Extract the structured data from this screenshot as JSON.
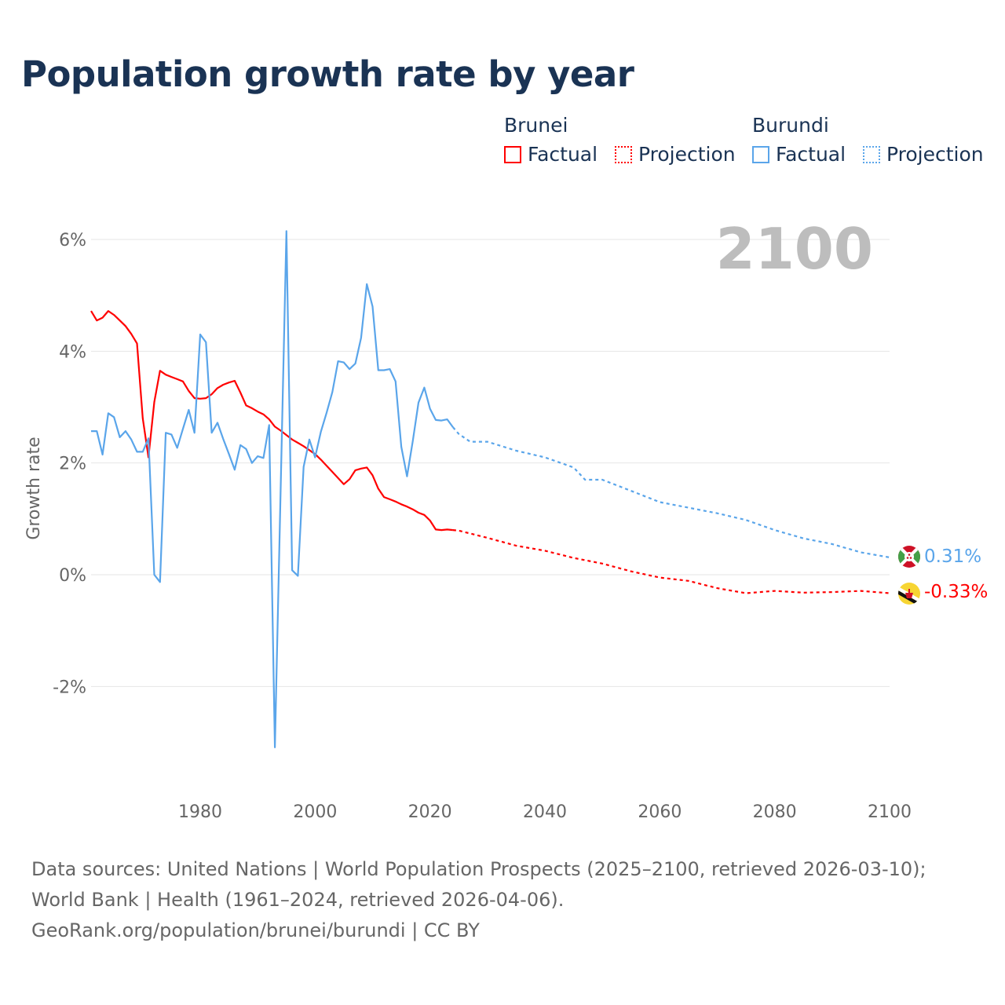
{
  "title": "Population growth rate by year",
  "legend": {
    "groups": [
      {
        "name": "Brunei",
        "color": "#ff0000",
        "factual": "Factual",
        "projection": "Projection"
      },
      {
        "name": "Burundi",
        "color": "#5aa5ea",
        "factual": "Factual",
        "projection": "Projection"
      }
    ]
  },
  "footer": {
    "sources": "Data sources: United Nations | World Population Prospects (2025–2100, retrieved 2026-03-10); World Bank | Health (1961–2024, retrieved 2026-04-06).",
    "credit": "GeoRank.org/population/brunei/burundi | CC BY"
  },
  "chart_data": {
    "type": "line",
    "title": "Population growth rate by year",
    "ylabel": "Growth rate",
    "xlabel": "",
    "year_label": "2100",
    "xlim": [
      1961,
      2100
    ],
    "ylim": [
      -3.5,
      6.5
    ],
    "xticks": [
      1980,
      2000,
      2020,
      2040,
      2060,
      2080,
      2100
    ],
    "yticks": [
      {
        "v": 6,
        "label": "6%"
      },
      {
        "v": 4,
        "label": "4%"
      },
      {
        "v": 2,
        "label": "2%"
      },
      {
        "v": 0,
        "label": "0%"
      },
      {
        "v": -2,
        "label": "-2%"
      }
    ],
    "grid": true,
    "series": [
      {
        "name": "Brunei",
        "color": "#ff0000",
        "end_label": "-0.33%",
        "factual": {
          "x": [
            1961,
            1962,
            1963,
            1964,
            1965,
            1966,
            1967,
            1968,
            1969,
            1970,
            1971,
            1972,
            1973,
            1974,
            1975,
            1976,
            1977,
            1978,
            1979,
            1980,
            1981,
            1982,
            1983,
            1984,
            1985,
            1986,
            1987,
            1988,
            1989,
            1990,
            1991,
            1992,
            1993,
            1994,
            1995,
            1996,
            1997,
            1998,
            1999,
            2000,
            2001,
            2002,
            2003,
            2004,
            2005,
            2006,
            2007,
            2008,
            2009,
            2010,
            2011,
            2012,
            2013,
            2014,
            2015,
            2016,
            2017,
            2018,
            2019,
            2020,
            2021,
            2022,
            2023,
            2024
          ],
          "y": [
            4.72,
            4.55,
            4.6,
            4.72,
            4.65,
            4.55,
            4.45,
            4.31,
            4.14,
            2.8,
            2.1,
            3.09,
            3.65,
            3.58,
            3.54,
            3.5,
            3.46,
            3.29,
            3.16,
            3.15,
            3.16,
            3.23,
            3.34,
            3.4,
            3.44,
            3.47,
            3.26,
            3.03,
            2.98,
            2.92,
            2.87,
            2.78,
            2.65,
            2.58,
            2.5,
            2.42,
            2.36,
            2.3,
            2.23,
            2.16,
            2.06,
            1.95,
            1.84,
            1.73,
            1.62,
            1.71,
            1.87,
            1.9,
            1.92,
            1.78,
            1.54,
            1.39,
            1.35,
            1.31,
            1.26,
            1.22,
            1.17,
            1.11,
            1.07,
            0.97,
            0.81,
            0.8,
            0.81,
            0.8
          ]
        },
        "projection": {
          "x": [
            2024,
            2025,
            2030,
            2035,
            2040,
            2045,
            2050,
            2055,
            2060,
            2065,
            2070,
            2075,
            2080,
            2085,
            2090,
            2095,
            2100
          ],
          "y": [
            0.8,
            0.79,
            0.66,
            0.52,
            0.43,
            0.3,
            0.2,
            0.06,
            -0.05,
            -0.11,
            -0.24,
            -0.33,
            -0.29,
            -0.32,
            -0.31,
            -0.29,
            -0.33
          ]
        }
      },
      {
        "name": "Burundi",
        "color": "#5aa5ea",
        "end_label": "0.31%",
        "factual": {
          "x": [
            1961,
            1962,
            1963,
            1964,
            1965,
            1966,
            1967,
            1968,
            1969,
            1970,
            1971,
            1972,
            1973,
            1974,
            1975,
            1976,
            1977,
            1978,
            1979,
            1980,
            1981,
            1982,
            1983,
            1984,
            1985,
            1986,
            1987,
            1988,
            1989,
            1990,
            1991,
            1992,
            1993,
            1994,
            1995,
            1996,
            1997,
            1998,
            1999,
            2000,
            2001,
            2002,
            2003,
            2004,
            2005,
            2006,
            2007,
            2008,
            2009,
            2010,
            2011,
            2012,
            2013,
            2014,
            2015,
            2016,
            2017,
            2018,
            2019,
            2020,
            2021,
            2022,
            2023,
            2024
          ],
          "y": [
            2.57,
            2.57,
            2.15,
            2.89,
            2.82,
            2.46,
            2.57,
            2.42,
            2.2,
            2.2,
            2.44,
            0,
            -0.13,
            2.54,
            2.51,
            2.27,
            2.61,
            2.95,
            2.54,
            4.3,
            4.16,
            2.54,
            2.72,
            2.43,
            2.16,
            1.88,
            2.32,
            2.25,
            2.0,
            2.12,
            2.09,
            2.68,
            -3.09,
            1.5,
            6.15,
            0.08,
            -0.02,
            1.93,
            2.42,
            2.1,
            2.56,
            2.9,
            3.27,
            3.82,
            3.8,
            3.68,
            3.78,
            4.24,
            5.2,
            4.8,
            3.66,
            3.66,
            3.68,
            3.46,
            2.29,
            1.76,
            2.39,
            3.08,
            3.35,
            2.97,
            2.77,
            2.76,
            2.78,
            2.64
          ]
        },
        "projection": {
          "x": [
            2024,
            2025,
            2027,
            2030,
            2035,
            2040,
            2045,
            2047,
            2050,
            2055,
            2060,
            2065,
            2070,
            2075,
            2080,
            2085,
            2090,
            2095,
            2100
          ],
          "y": [
            2.64,
            2.52,
            2.38,
            2.38,
            2.22,
            2.1,
            1.92,
            1.7,
            1.7,
            1.5,
            1.3,
            1.2,
            1.1,
            0.98,
            0.8,
            0.65,
            0.55,
            0.4,
            0.31
          ]
        }
      }
    ]
  }
}
